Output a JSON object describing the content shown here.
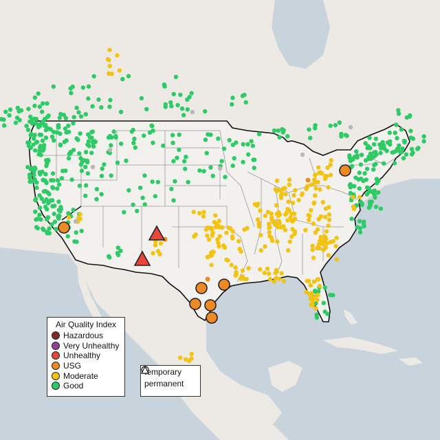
{
  "legend": {
    "title": "Air Quality Index",
    "categories": [
      {
        "label": "Hazardous",
        "color": "#7e2b24"
      },
      {
        "label": "Very Unhealthy",
        "color": "#8f3f97"
      },
      {
        "label": "Unhealthy",
        "color": "#e8463a"
      },
      {
        "label": "USG",
        "color": "#ee8a24"
      },
      {
        "label": "Moderate",
        "color": "#f3c313"
      },
      {
        "label": "Good",
        "color": "#2ccb66"
      }
    ]
  },
  "monitor_types": [
    {
      "label": "temporary",
      "shape": "circle"
    },
    {
      "label": "permanent",
      "shape": "triangle"
    }
  ],
  "colors": {
    "land": "#ede9e4",
    "water": "#c9d3db",
    "us_land": "#f3f1ee",
    "border": "#111111",
    "state_lines": "#9a9a9a",
    "no_data": "#b8b8b8"
  }
}
